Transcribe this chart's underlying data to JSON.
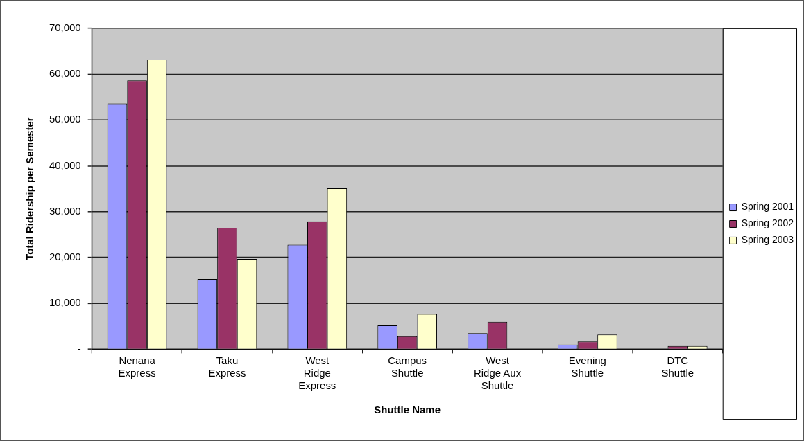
{
  "chart_data": {
    "type": "bar",
    "xlabel": "Shuttle Name",
    "ylabel": "Total Ridership per Semester",
    "categories": [
      "Nenana Express",
      "Taku Express",
      "West Ridge Express",
      "Campus Shuttle",
      "West Ridge Aux Shuttle",
      "Evening Shuttle",
      "DTC Shuttle"
    ],
    "series": [
      {
        "name": "Spring 2001",
        "color": "#9999ff",
        "values": [
          53600,
          15300,
          22800,
          5200,
          3500,
          1000,
          0
        ]
      },
      {
        "name": "Spring 2002",
        "color": "#993366",
        "values": [
          58600,
          26500,
          27900,
          2800,
          6000,
          1700,
          700
        ]
      },
      {
        "name": "Spring 2003",
        "color": "#ffffcc",
        "values": [
          63200,
          19700,
          35100,
          7700,
          0,
          3200,
          700
        ]
      }
    ],
    "ylim": [
      0,
      70000
    ],
    "yticks": [
      {
        "value": 0,
        "label": "-"
      },
      {
        "value": 10000,
        "label": "10,000"
      },
      {
        "value": 20000,
        "label": "20,000"
      },
      {
        "value": 30000,
        "label": "30,000"
      },
      {
        "value": 40000,
        "label": "40,000"
      },
      {
        "value": 50000,
        "label": "50,000"
      },
      {
        "value": 60000,
        "label": "60,000"
      },
      {
        "value": 70000,
        "label": "70,000"
      }
    ],
    "grid": "y",
    "legend": "right"
  }
}
